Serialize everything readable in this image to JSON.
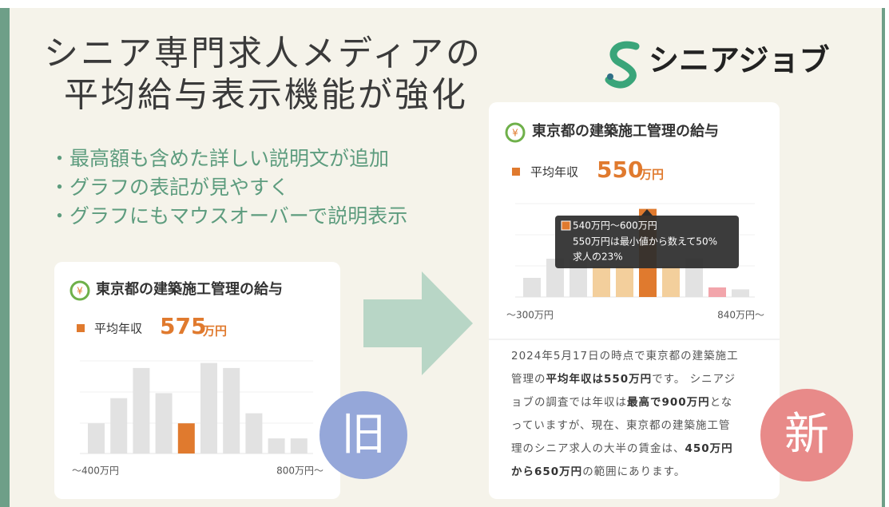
{
  "header": {
    "title_lines": [
      "シニア専門求人メディアの",
      "平均給与表示機能が強化"
    ],
    "logo": "シニアジョブ"
  },
  "bullets": [
    "・最高額も含めた詳しい説明文が追加",
    "・グラフの表記が見やすく",
    "・グラフにもマウスオーバーで説明表示"
  ],
  "old_card": {
    "title": "東京都の建築施工管理の給与",
    "avg_label": "平均年収",
    "avg_value": "575",
    "avg_unit": "万円",
    "chart": {
      "type": "bar",
      "values": [
        6,
        11,
        17,
        12,
        6,
        18,
        17,
        8,
        3,
        3
      ],
      "colors": [
        "#e2e2e2",
        "#e2e2e2",
        "#e2e2e2",
        "#e2e2e2",
        "#e07a2e",
        "#e2e2e2",
        "#e2e2e2",
        "#e2e2e2",
        "#e2e2e2",
        "#e2e2e2"
      ],
      "x_start_label": "〜400万円",
      "x_end_label": "800万円〜"
    },
    "badge": "旧"
  },
  "new_card": {
    "title": "東京都の建築施工管理の給与",
    "avg_label": "平均年収",
    "avg_value": "550",
    "avg_unit": "万円",
    "chart": {
      "type": "bar",
      "values": [
        5,
        10,
        10,
        8,
        8,
        23,
        8,
        10,
        2.5,
        2
      ],
      "colors": [
        "#e2e2e2",
        "#e2e2e2",
        "#e2e2e2",
        "#f3cf9c",
        "#f3cf9c",
        "#e07a2e",
        "#f3cf9c",
        "#e2e2e2",
        "#f2a5ab",
        "#e2e2e2"
      ],
      "x_start_label": "〜300万円",
      "x_end_label": "840万円〜",
      "tooltip": [
        "540万円〜600万円",
        "550万円は最小値から数えて50%",
        "求人の23%"
      ]
    },
    "paragraph": [
      [
        {
          "text": "2024年5月17日の時点で東京都の建築施工",
          "bold": false
        }
      ],
      [
        {
          "text": "管理の",
          "bold": false
        },
        {
          "text": "平均年収は550万円",
          "bold": true
        },
        {
          "text": "です。 シニアジ",
          "bold": false
        }
      ],
      [
        {
          "text": "ョブの調査では年収は",
          "bold": false
        },
        {
          "text": "最高で900万円",
          "bold": true
        },
        {
          "text": "とな",
          "bold": false
        }
      ],
      [
        {
          "text": "っていますが、現在、東京都の建築施工管",
          "bold": false
        }
      ],
      [
        {
          "text": "理のシニア求人の大半の賃金は、",
          "bold": false
        },
        {
          "text": "450万円",
          "bold": true
        }
      ],
      [
        {
          "text": "から650万円",
          "bold": true
        },
        {
          "text": "の範囲にあります。",
          "bold": false
        }
      ]
    ],
    "badge": "新"
  }
}
